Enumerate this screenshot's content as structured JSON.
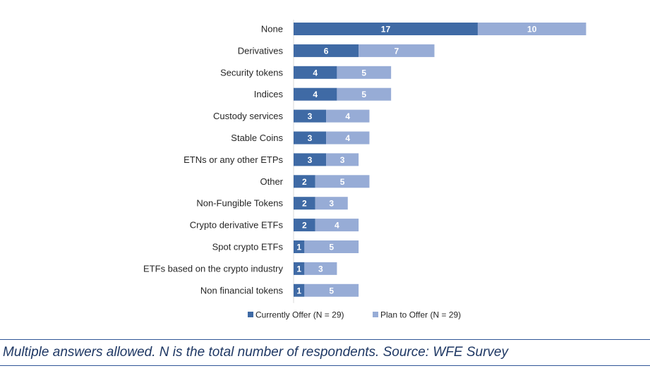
{
  "chart_data": {
    "type": "bar",
    "orientation": "horizontal",
    "stacked": true,
    "categories": [
      "None",
      "Derivatives",
      "Security tokens",
      "Indices",
      "Custody services",
      "Stable Coins",
      "ETNs or any other ETPs",
      "Other",
      "Non-Fungible Tokens",
      "Crypto derivative ETFs",
      "Spot crypto ETFs",
      "ETFs based on the crypto industry",
      "Non financial tokens"
    ],
    "series": [
      {
        "name": "Currently Offer (N = 29)",
        "color": "#3f6aa5",
        "values": [
          17,
          6,
          4,
          4,
          3,
          3,
          3,
          2,
          2,
          2,
          1,
          1,
          1
        ]
      },
      {
        "name": "Plan to Offer (N = 29)",
        "color": "#97acd6",
        "values": [
          10,
          7,
          5,
          5,
          4,
          4,
          3,
          5,
          3,
          4,
          5,
          3,
          5
        ]
      }
    ],
    "data_labels": true,
    "legend_position": "bottom",
    "grid": false
  },
  "caption": "Multiple answers allowed. N is the total number of respondents. Source: WFE Survey",
  "colors": {
    "caption_text": "#1f3864",
    "caption_rule": "#2f5597",
    "axis": "#d9d9d9"
  }
}
